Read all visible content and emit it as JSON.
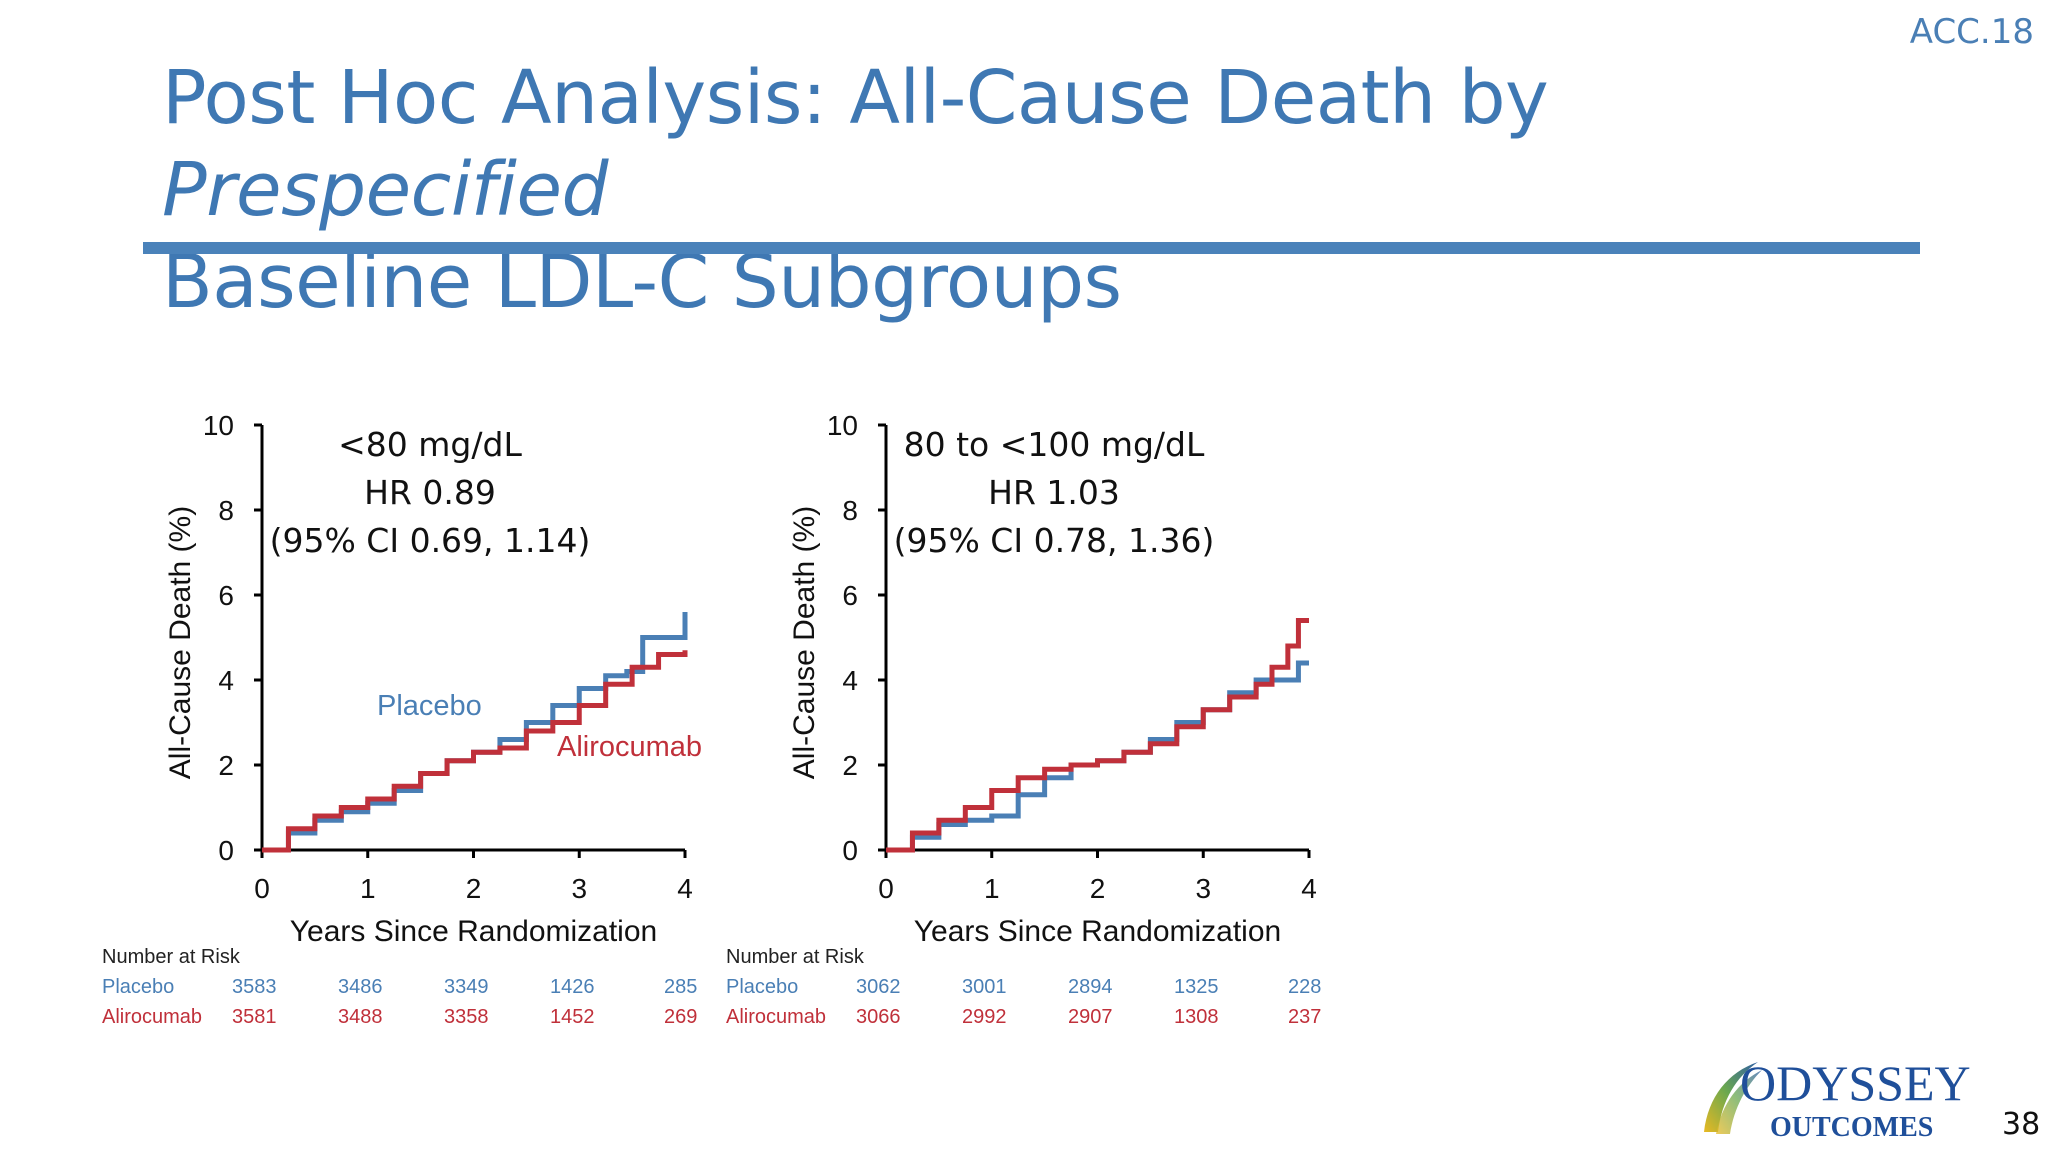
{
  "header": {
    "tag": "ACC.18",
    "title_part1": "Post Hoc Analysis: All-Cause Death by ",
    "title_italic": "Prespecified",
    "title_part2": "Baseline LDL-C Subgroups"
  },
  "chart_data": [
    {
      "type": "line",
      "subgroup": "<80 mg/dL",
      "hr_text": "HR 0.89",
      "ci_text": "(95% CI 0.69, 1.14)",
      "xlabel": "Years Since Randomization",
      "ylabel": "All-Cause Death (%)",
      "xlim": [
        0,
        4
      ],
      "ylim": [
        0,
        10
      ],
      "xticks": [
        "0",
        "1",
        "2",
        "3",
        "4"
      ],
      "yticks": [
        "0",
        "2",
        "4",
        "6",
        "8",
        "10"
      ],
      "series": [
        {
          "name": "Placebo",
          "color": "#4a7fb5",
          "x": [
            0,
            0.25,
            0.5,
            0.75,
            1.0,
            1.25,
            1.5,
            1.75,
            2.0,
            2.25,
            2.5,
            2.75,
            3.0,
            3.25,
            3.45,
            3.6,
            3.75,
            3.9,
            4.0
          ],
          "y": [
            0,
            0.4,
            0.7,
            0.9,
            1.1,
            1.4,
            1.8,
            2.1,
            2.3,
            2.6,
            3.0,
            3.4,
            3.8,
            4.1,
            4.2,
            5.0,
            5.0,
            5.0,
            5.6
          ]
        },
        {
          "name": "Alirocumab",
          "color": "#c0303a",
          "x": [
            0,
            0.25,
            0.5,
            0.75,
            1.0,
            1.25,
            1.5,
            1.75,
            2.0,
            2.25,
            2.5,
            2.75,
            3.0,
            3.25,
            3.5,
            3.75,
            4.0
          ],
          "y": [
            0,
            0.5,
            0.8,
            1.0,
            1.2,
            1.5,
            1.8,
            2.1,
            2.3,
            2.4,
            2.8,
            3.0,
            3.4,
            3.9,
            4.3,
            4.6,
            4.7
          ]
        }
      ],
      "number_at_risk": {
        "header": "Number at Risk",
        "placebo_label": "Placebo",
        "alirocumab_label": "Alirocumab",
        "placebo": [
          "3583",
          "3486",
          "3349",
          "1426",
          "285"
        ],
        "alirocumab": [
          "3581",
          "3488",
          "3358",
          "1452",
          "269"
        ]
      }
    },
    {
      "type": "line",
      "subgroup": "80 to <100 mg/dL",
      "hr_text": "HR 1.03",
      "ci_text": "(95% CI 0.78, 1.36)",
      "xlabel": "Years Since Randomization",
      "ylabel": "All-Cause Death (%)",
      "xlim": [
        0,
        4
      ],
      "ylim": [
        0,
        10
      ],
      "xticks": [
        "0",
        "1",
        "2",
        "3",
        "4"
      ],
      "yticks": [
        "0",
        "2",
        "4",
        "6",
        "8",
        "10"
      ],
      "series": [
        {
          "name": "Placebo",
          "color": "#4a7fb5",
          "x": [
            0,
            0.25,
            0.5,
            0.75,
            1.0,
            1.25,
            1.5,
            1.75,
            2.0,
            2.25,
            2.5,
            2.75,
            3.0,
            3.25,
            3.5,
            3.75,
            3.9,
            4.0
          ],
          "y": [
            0,
            0.3,
            0.6,
            0.7,
            0.8,
            1.3,
            1.7,
            2.0,
            2.1,
            2.3,
            2.6,
            3.0,
            3.3,
            3.7,
            4.0,
            4.0,
            4.4,
            4.4
          ]
        },
        {
          "name": "Alirocumab",
          "color": "#c0303a",
          "x": [
            0,
            0.25,
            0.5,
            0.75,
            1.0,
            1.25,
            1.5,
            1.75,
            2.0,
            2.25,
            2.5,
            2.75,
            3.0,
            3.25,
            3.5,
            3.65,
            3.8,
            3.9,
            4.0
          ],
          "y": [
            0,
            0.4,
            0.7,
            1.0,
            1.4,
            1.7,
            1.9,
            2.0,
            2.1,
            2.3,
            2.5,
            2.9,
            3.3,
            3.6,
            3.9,
            4.3,
            4.8,
            5.4,
            5.4
          ]
        }
      ],
      "number_at_risk": {
        "header": "Number at Risk",
        "placebo_label": "Placebo",
        "alirocumab_label": "Alirocumab",
        "placebo": [
          "3062",
          "3001",
          "2894",
          "1325",
          "228"
        ],
        "alirocumab": [
          "3066",
          "2992",
          "2907",
          "1308",
          "237"
        ]
      }
    }
  ],
  "inline_labels": {
    "placebo": "Placebo",
    "alirocumab": "Alirocumab"
  },
  "logo": {
    "line1": "ODYSSEY",
    "line2": "OUTCOMES"
  },
  "page_number": "38"
}
